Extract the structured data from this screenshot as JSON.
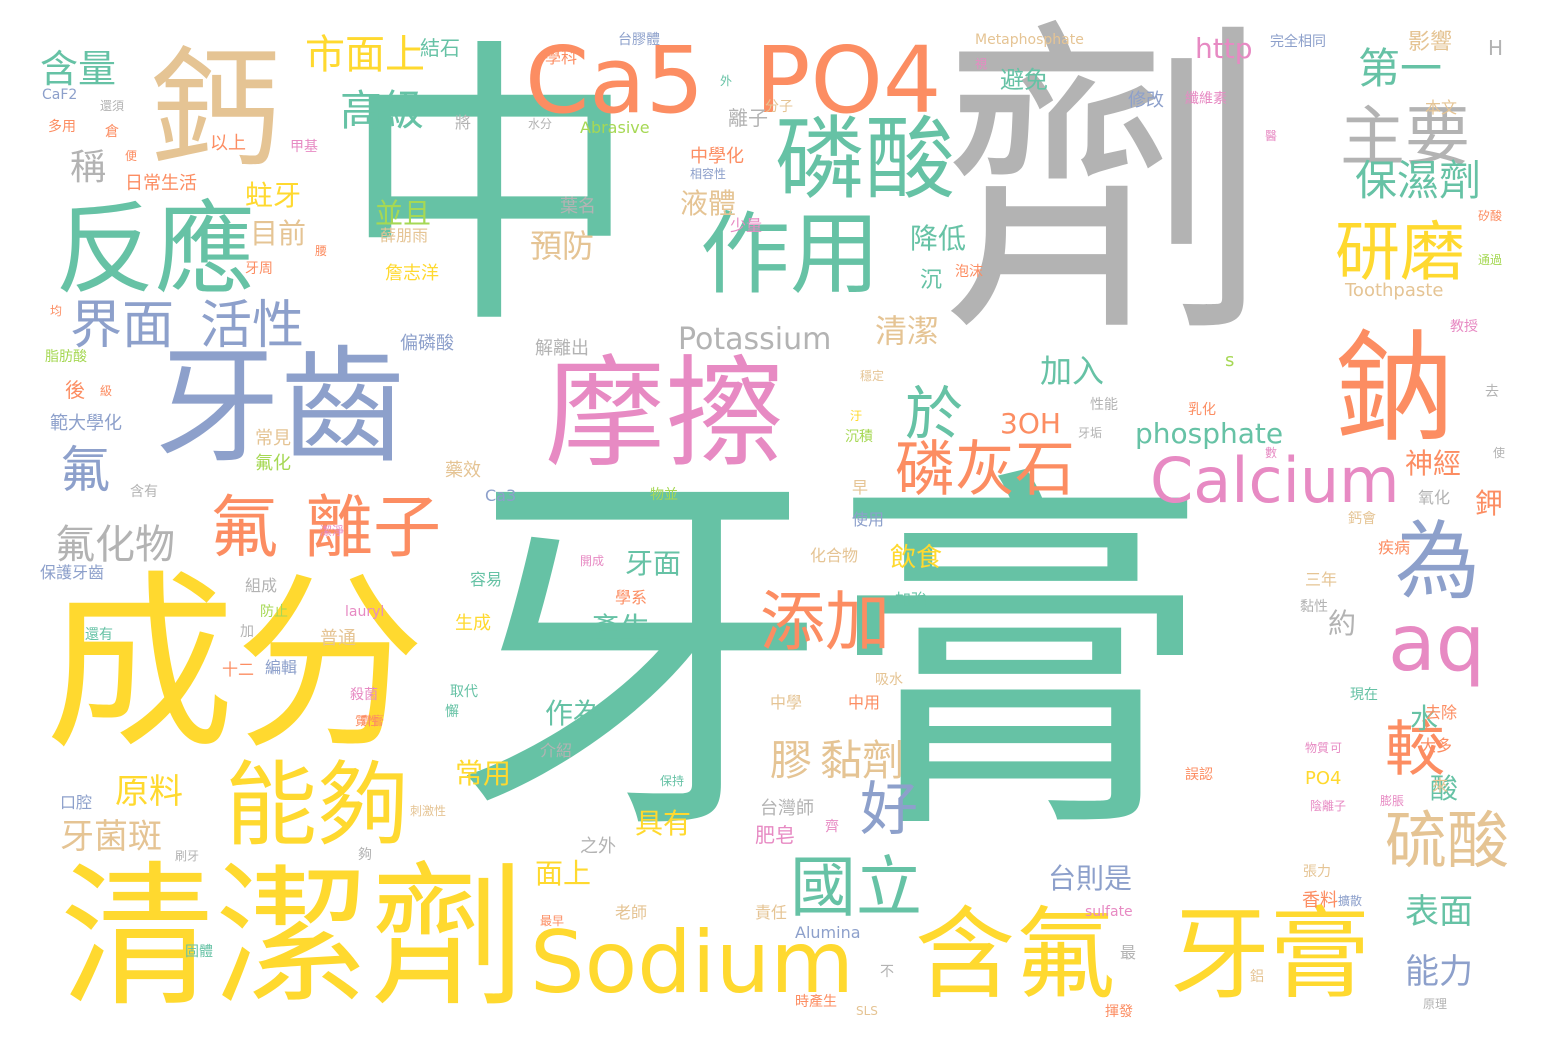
{
  "palette": {
    "green": "#66c2a5",
    "gray": "#b3b3b3",
    "yellow": "#ffd92f",
    "orange": "#fc8d62",
    "blue": "#8da0cb",
    "pink": "#e78ac3",
    "tan": "#e5c494",
    "lime": "#a6d854"
  },
  "words": [
    {
      "t": "中",
      "c": "green"
    },
    {
      "t": "劑",
      "c": "gray"
    },
    {
      "t": "牙膏",
      "c": "green"
    },
    {
      "t": "成分",
      "c": "yellow"
    },
    {
      "t": "清潔劑",
      "c": "yellow"
    },
    {
      "t": "鈣",
      "c": "tan"
    },
    {
      "t": "反應",
      "c": "green"
    },
    {
      "t": "牙齒",
      "c": "blue"
    },
    {
      "t": "摩擦",
      "c": "pink"
    },
    {
      "t": "Ca5",
      "c": "orange"
    },
    {
      "t": "PO4",
      "c": "orange"
    },
    {
      "t": "磷酸",
      "c": "green"
    },
    {
      "t": "作用",
      "c": "green"
    },
    {
      "t": "鈉",
      "c": "orange"
    },
    {
      "t": "含氟",
      "c": "yellow"
    },
    {
      "t": "牙膏",
      "c": "yellow"
    },
    {
      "t": "Sodium",
      "c": "yellow"
    },
    {
      "t": "Calcium",
      "c": "pink"
    },
    {
      "t": "磷灰石",
      "c": "orange"
    },
    {
      "t": "能夠",
      "c": "yellow"
    },
    {
      "t": "氟",
      "c": "orange"
    },
    {
      "t": "離子",
      "c": "orange"
    },
    {
      "t": "界面",
      "c": "blue"
    },
    {
      "t": "活性",
      "c": "blue"
    },
    {
      "t": "主要",
      "c": "gray"
    },
    {
      "t": "研磨",
      "c": "yellow"
    },
    {
      "t": "為",
      "c": "blue"
    },
    {
      "t": "aq",
      "c": "pink"
    },
    {
      "t": "添加",
      "c": "orange"
    },
    {
      "t": "硫酸",
      "c": "tan"
    },
    {
      "t": "國立",
      "c": "green"
    },
    {
      "t": "好",
      "c": "blue"
    },
    {
      "t": "較",
      "c": "orange"
    },
    {
      "t": "於",
      "c": "green"
    },
    {
      "t": "含量",
      "c": "green"
    },
    {
      "t": "市面上",
      "c": "yellow"
    },
    {
      "t": "高級",
      "c": "green"
    },
    {
      "t": "第一",
      "c": "green"
    },
    {
      "t": "保濕劑",
      "c": "green"
    },
    {
      "t": "氟",
      "c": "blue"
    },
    {
      "t": "氟化物",
      "c": "gray"
    },
    {
      "t": "稱",
      "c": "gray"
    },
    {
      "t": "蛀牙",
      "c": "yellow"
    },
    {
      "t": "目前",
      "c": "tan"
    },
    {
      "t": "並且",
      "c": "lime"
    },
    {
      "t": "預防",
      "c": "tan"
    },
    {
      "t": "液體",
      "c": "tan"
    },
    {
      "t": "降低",
      "c": "green"
    },
    {
      "t": "清潔",
      "c": "tan"
    },
    {
      "t": "加入",
      "c": "green"
    },
    {
      "t": "Potassium",
      "c": "gray"
    },
    {
      "t": "phosphate",
      "c": "green"
    },
    {
      "t": "3OH",
      "c": "orange"
    },
    {
      "t": "http",
      "c": "pink"
    },
    {
      "t": "原料",
      "c": "yellow"
    },
    {
      "t": "牙菌斑",
      "c": "tan"
    },
    {
      "t": "膠",
      "c": "tan"
    },
    {
      "t": "黏劑",
      "c": "tan"
    },
    {
      "t": "台則是",
      "c": "blue"
    },
    {
      "t": "表面",
      "c": "green"
    },
    {
      "t": "能力",
      "c": "blue"
    },
    {
      "t": "產生",
      "c": "green"
    },
    {
      "t": "牙面",
      "c": "green"
    },
    {
      "t": "作為",
      "c": "green"
    },
    {
      "t": "常用",
      "c": "yellow"
    },
    {
      "t": "具有",
      "c": "yellow"
    },
    {
      "t": "面上",
      "c": "yellow"
    },
    {
      "t": "飲食",
      "c": "yellow"
    },
    {
      "t": "神經",
      "c": "orange"
    },
    {
      "t": "約",
      "c": "gray"
    },
    {
      "t": "水",
      "c": "green"
    },
    {
      "t": "酸",
      "c": "green"
    },
    {
      "t": "鉀",
      "c": "orange"
    },
    {
      "t": "結石",
      "c": "green"
    },
    {
      "t": "學科",
      "c": "orange"
    },
    {
      "t": "台膠體",
      "c": "blue"
    },
    {
      "t": "Metaphosphate",
      "c": "tan"
    },
    {
      "t": "完全相同",
      "c": "blue"
    },
    {
      "t": "影響",
      "c": "tan"
    },
    {
      "t": "H",
      "c": "gray"
    },
    {
      "t": "避免",
      "c": "green"
    },
    {
      "t": "修改",
      "c": "blue"
    },
    {
      "t": "纖維素",
      "c": "pink"
    },
    {
      "t": "本文",
      "c": "tan"
    },
    {
      "t": "Abrasive",
      "c": "lime"
    },
    {
      "t": "離子",
      "c": "gray"
    },
    {
      "t": "水分",
      "c": "gray"
    },
    {
      "t": "分子",
      "c": "tan"
    },
    {
      "t": "CaF2",
      "c": "blue"
    },
    {
      "t": "多用",
      "c": "orange"
    },
    {
      "t": "以上",
      "c": "orange"
    },
    {
      "t": "日常生活",
      "c": "orange"
    },
    {
      "t": "中學化",
      "c": "orange"
    },
    {
      "t": "相容性",
      "c": "blue"
    },
    {
      "t": "葉名",
      "c": "gray"
    },
    {
      "t": "少量",
      "c": "pink"
    },
    {
      "t": "矽酸",
      "c": "orange"
    },
    {
      "t": "通過",
      "c": "lime"
    },
    {
      "t": "Toothpaste",
      "c": "tan"
    },
    {
      "t": "教授",
      "c": "pink"
    },
    {
      "t": "泡沫",
      "c": "orange"
    },
    {
      "t": "薛朋雨",
      "c": "tan"
    },
    {
      "t": "詹志洋",
      "c": "yellow"
    },
    {
      "t": "偏磷酸",
      "c": "blue"
    },
    {
      "t": "解離出",
      "c": "gray"
    },
    {
      "t": "脂肪酸",
      "c": "lime"
    },
    {
      "t": "範大學化",
      "c": "blue"
    },
    {
      "t": "常見",
      "c": "tan"
    },
    {
      "t": "氟化",
      "c": "lime"
    },
    {
      "t": "性能",
      "c": "gray"
    },
    {
      "t": "乳化",
      "c": "orange"
    },
    {
      "t": "牙垢",
      "c": "gray"
    },
    {
      "t": "沉積",
      "c": "lime"
    },
    {
      "t": "藥效",
      "c": "tan"
    },
    {
      "t": "物並",
      "c": "lime"
    },
    {
      "t": "含有",
      "c": "gray"
    },
    {
      "t": "Ca3",
      "c": "blue"
    },
    {
      "t": "氧化",
      "c": "gray"
    },
    {
      "t": "早",
      "c": "tan"
    },
    {
      "t": "使用",
      "c": "blue"
    },
    {
      "t": "化合物",
      "c": "tan"
    },
    {
      "t": "加強",
      "c": "green"
    },
    {
      "t": "鈣會",
      "c": "tan"
    },
    {
      "t": "疾病",
      "c": "orange"
    },
    {
      "t": "保護牙齒",
      "c": "blue"
    },
    {
      "t": "組成",
      "c": "gray"
    },
    {
      "t": "防止",
      "c": "lime"
    },
    {
      "t": "還有",
      "c": "green"
    },
    {
      "t": "普通",
      "c": "tan"
    },
    {
      "t": "lauryl",
      "c": "pink"
    },
    {
      "t": "生成",
      "c": "yellow"
    },
    {
      "t": "學系",
      "c": "orange"
    },
    {
      "t": "容易",
      "c": "green"
    },
    {
      "t": "三年",
      "c": "tan"
    },
    {
      "t": "黏性",
      "c": "gray"
    },
    {
      "t": "十二",
      "c": "orange"
    },
    {
      "t": "編輯",
      "c": "blue"
    },
    {
      "t": "殺菌",
      "c": "pink"
    },
    {
      "t": "取代",
      "c": "green"
    },
    {
      "t": "吸水",
      "c": "tan"
    },
    {
      "t": "中學",
      "c": "tan"
    },
    {
      "t": "中用",
      "c": "orange"
    },
    {
      "t": "現在",
      "c": "green"
    },
    {
      "t": "去除",
      "c": "orange"
    },
    {
      "t": "大多",
      "c": "orange"
    },
    {
      "t": "物質",
      "c": "pink"
    },
    {
      "t": "口腔",
      "c": "blue"
    },
    {
      "t": "介紹",
      "c": "gray"
    },
    {
      "t": "台灣師",
      "c": "gray"
    },
    {
      "t": "肥皂",
      "c": "pink"
    },
    {
      "t": "PO4",
      "c": "yellow"
    },
    {
      "t": "陰離子",
      "c": "pink"
    },
    {
      "t": "膨脹",
      "c": "pink"
    },
    {
      "t": "保持",
      "c": "green"
    },
    {
      "t": "之外",
      "c": "gray"
    },
    {
      "t": "張力",
      "c": "tan"
    },
    {
      "t": "香料",
      "c": "orange"
    },
    {
      "t": "責任",
      "c": "tan"
    },
    {
      "t": "老師",
      "c": "tan"
    },
    {
      "t": "最早",
      "c": "orange"
    },
    {
      "t": "固體",
      "c": "green"
    },
    {
      "t": "Alumina",
      "c": "blue"
    },
    {
      "t": "sulfate",
      "c": "pink"
    },
    {
      "t": "擴散",
      "c": "blue"
    },
    {
      "t": "最",
      "c": "gray"
    },
    {
      "t": "揮發",
      "c": "orange"
    },
    {
      "t": "SLS",
      "c": "tan"
    },
    {
      "t": "原理",
      "c": "gray"
    },
    {
      "t": "不",
      "c": "gray"
    },
    {
      "t": "時產生",
      "c": "orange"
    },
    {
      "t": "刷牙",
      "c": "gray"
    },
    {
      "t": "刺激性",
      "c": "tan"
    },
    {
      "t": "還須",
      "c": "gray"
    },
    {
      "t": "便",
      "c": "orange"
    },
    {
      "t": "甲基",
      "c": "pink"
    },
    {
      "t": "倉",
      "c": "orange"
    },
    {
      "t": "牙周",
      "c": "orange"
    },
    {
      "t": "將",
      "c": "gray"
    },
    {
      "t": "s",
      "c": "lime"
    },
    {
      "t": "穩定",
      "c": "tan"
    },
    {
      "t": "去",
      "c": "gray"
    },
    {
      "t": "使",
      "c": "gray"
    },
    {
      "t": "外",
      "c": "green"
    },
    {
      "t": "視",
      "c": "pink"
    },
    {
      "t": "醫",
      "c": "pink"
    },
    {
      "t": "沉",
      "c": "green"
    },
    {
      "t": "汙",
      "c": "yellow"
    },
    {
      "t": "數",
      "c": "pink"
    },
    {
      "t": "後",
      "c": "orange"
    },
    {
      "t": "級",
      "c": "orange"
    },
    {
      "t": "均",
      "c": "orange"
    },
    {
      "t": "腰",
      "c": "orange"
    },
    {
      "t": "加",
      "c": "gray"
    },
    {
      "t": "懈",
      "c": "green"
    },
    {
      "t": "夠",
      "c": "gray"
    },
    {
      "t": "齊",
      "c": "pink"
    },
    {
      "t": "來",
      "c": "tan"
    },
    {
      "t": "鋁",
      "c": "tan"
    },
    {
      "t": "潔淨",
      "c": "pink"
    },
    {
      "t": "質性",
      "c": "orange"
    },
    {
      "t": "誤認",
      "c": "orange"
    },
    {
      "t": "開成",
      "c": "pink"
    },
    {
      "t": "齊膏",
      "c": "orange"
    },
    {
      "t": "可",
      "c": "pink"
    }
  ]
}
